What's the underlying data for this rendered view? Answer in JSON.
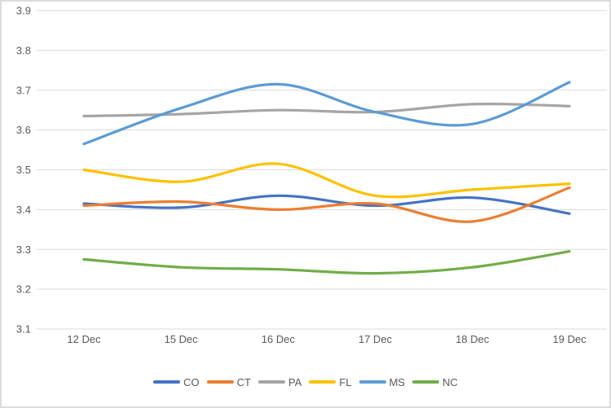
{
  "colors": {
    "background": "#FFFFFF",
    "frame_border": "#DCDCDC",
    "gridline": "#D9D9D9",
    "axis_text": "#595959"
  },
  "chart_data": {
    "type": "line",
    "smooth": true,
    "grid": true,
    "legend_position": "bottom",
    "ylim": [
      3.1,
      3.9
    ],
    "ytick_step": 0.1,
    "y_tick_labels": [
      "3.9",
      "3.8",
      "3.7",
      "3.6",
      "3.5",
      "3.4",
      "3.3",
      "3.2",
      "3.1"
    ],
    "categories": [
      "12 Dec",
      "15 Dec",
      "16 Dec",
      "17 Dec",
      "18 Dec",
      "19 Dec"
    ],
    "series": [
      {
        "name": "CO",
        "color": "#4472C4",
        "values": [
          3.415,
          3.405,
          3.435,
          3.41,
          3.43,
          3.39
        ]
      },
      {
        "name": "CT",
        "color": "#ED7D31",
        "values": [
          3.41,
          3.42,
          3.4,
          3.415,
          3.37,
          3.455
        ]
      },
      {
        "name": "PA",
        "color": "#A5A5A5",
        "values": [
          3.635,
          3.64,
          3.65,
          3.645,
          3.665,
          3.66
        ]
      },
      {
        "name": "FL",
        "color": "#FFC000",
        "values": [
          3.5,
          3.47,
          3.515,
          3.435,
          3.45,
          3.465
        ]
      },
      {
        "name": "MS",
        "color": "#5B9BD5",
        "values": [
          3.565,
          3.655,
          3.715,
          3.645,
          3.615,
          3.72
        ]
      },
      {
        "name": "NC",
        "color": "#70AD47",
        "values": [
          3.275,
          3.255,
          3.25,
          3.24,
          3.255,
          3.295
        ]
      }
    ]
  }
}
